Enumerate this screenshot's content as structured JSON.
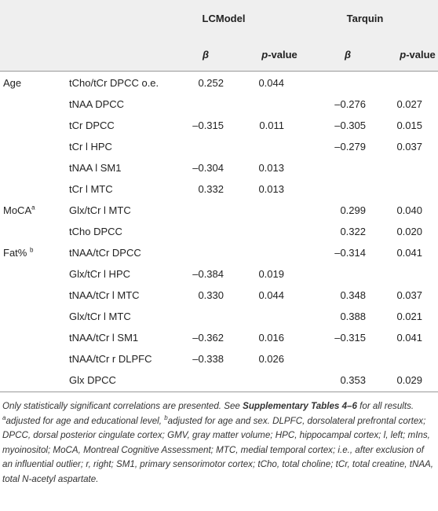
{
  "table": {
    "groups": [
      "LCModel",
      "Tarquin"
    ],
    "columns": [
      {
        "symbol": "β"
      },
      {
        "italic": "p",
        "rest": "-value"
      },
      {
        "symbol": "β"
      },
      {
        "italic": "p",
        "rest": "-value"
      }
    ],
    "rows": [
      {
        "group": "Age",
        "measure": "tCho/tCr DPCC o.e.",
        "cells": [
          "0.252",
          "0.044",
          null,
          null
        ]
      },
      {
        "measure": "tNAA DPCC",
        "cells": [
          null,
          null,
          "–0.276",
          "0.027"
        ]
      },
      {
        "measure": "tCr DPCC",
        "cells": [
          "–0.315",
          "0.011",
          "–0.305",
          "0.015"
        ]
      },
      {
        "measure": "tCr l HPC",
        "cells": [
          null,
          null,
          "–0.279",
          "0.037"
        ]
      },
      {
        "measure": "tNAA l SM1",
        "cells": [
          "–0.304",
          "0.013",
          null,
          null
        ]
      },
      {
        "measure": "tCr l MTC",
        "cells": [
          "0.332",
          "0.013",
          null,
          null
        ]
      },
      {
        "group": "MoCA",
        "group_note": "a",
        "measure": "Glx/tCr l MTC",
        "cells": [
          null,
          null,
          "0.299",
          "0.040"
        ]
      },
      {
        "measure": "tCho DPCC",
        "cells": [
          null,
          null,
          "0.322",
          "0.020"
        ]
      },
      {
        "group": "Fat% ",
        "group_note": "b",
        "measure": "tNAA/tCr DPCC",
        "cells": [
          null,
          null,
          "–0.314",
          "0.041"
        ]
      },
      {
        "measure": "Glx/tCr l HPC",
        "cells": [
          "–0.384",
          "0.019",
          null,
          null
        ]
      },
      {
        "measure": "tNAA/tCr l MTC",
        "cells": [
          "0.330",
          "0.044",
          "0.348",
          "0.037"
        ]
      },
      {
        "measure": "Glx/tCr l MTC",
        "cells": [
          null,
          null,
          "0.388",
          "0.021"
        ]
      },
      {
        "measure": "tNAA/tCr l SM1",
        "cells": [
          "–0.362",
          "0.016",
          "–0.315",
          "0.041"
        ]
      },
      {
        "measure": "tNAA/tCr r DLPFC",
        "cells": [
          "–0.338",
          "0.026",
          null,
          null
        ]
      },
      {
        "measure": "Glx DPCC",
        "cells": [
          null,
          null,
          "0.353",
          "0.029"
        ]
      }
    ]
  },
  "footnote": [
    {
      "text": "Only statistically significant correlations are presented. See "
    },
    {
      "text": "Supplementary Tables 4–6",
      "bold": true
    },
    {
      "text": " for all results. "
    },
    {
      "text": "a",
      "sup": true
    },
    {
      "text": "adjusted for age and educational level, "
    },
    {
      "text": "b",
      "sup": true
    },
    {
      "text": "adjusted for age and sex. DLPFC, dorsolateral prefrontal cortex; DPCC, dorsal posterior cingulate cortex; GMV, gray matter volume; HPC, hippocampal cortex; l, left; mIns, myoinositol; MoCA, Montreal Cognitive Assessment; MTC, medial temporal cortex; i.e., after exclusion of an influential outlier; r, right; SM1, primary sensorimotor cortex; tCho, total choline; tCr, total creatine, tNAA, total N-acetyl aspartate."
    }
  ]
}
